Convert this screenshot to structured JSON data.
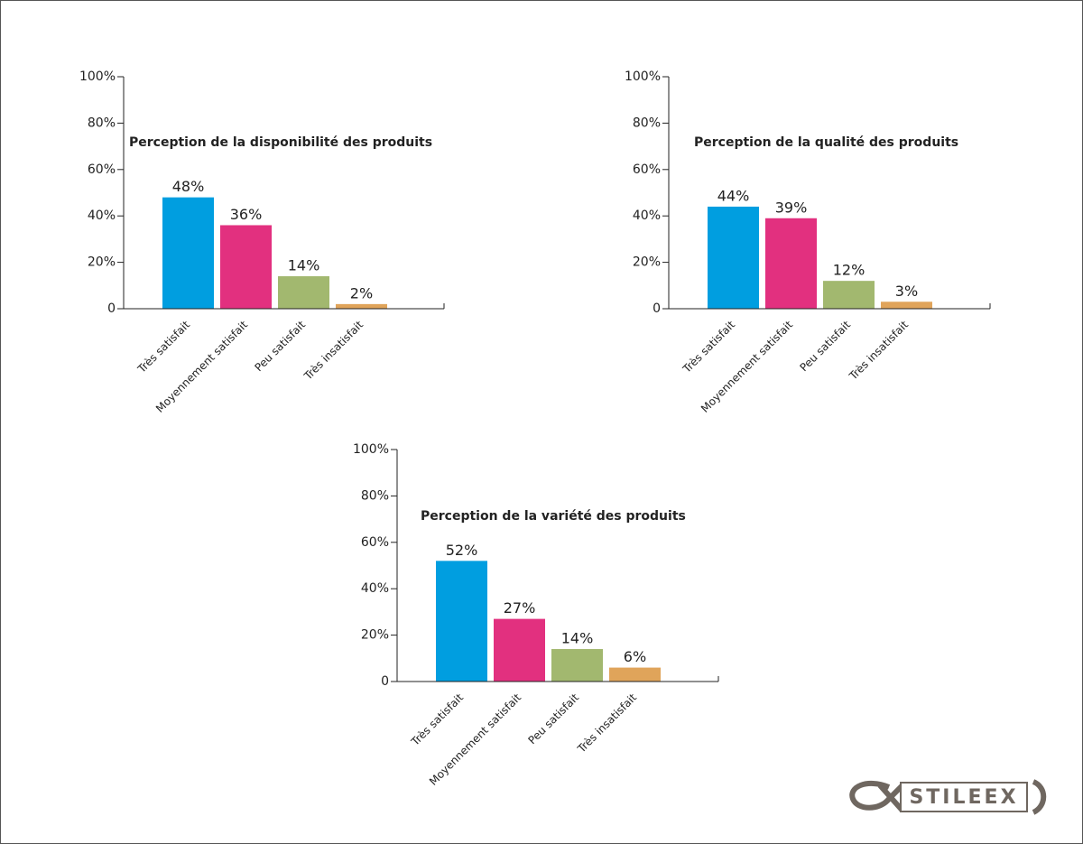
{
  "chart_data": [
    {
      "type": "bar",
      "title": "Perception de la disponibilité des produits",
      "categories": [
        "Très satisfait",
        "Moyennement satisfait",
        "Peu satisfait",
        "Très insatisfait"
      ],
      "values": [
        48,
        36,
        14,
        2
      ],
      "value_labels": [
        "48%",
        "36%",
        "14%",
        "2%"
      ],
      "colors": [
        "#009ee0",
        "#e2307f",
        "#a2b86f",
        "#e0a45a"
      ],
      "ylim": [
        0,
        100
      ],
      "yticks": [
        0,
        {
          "value": 20,
          "label": "20%"
        },
        {
          "value": 40,
          "label": "40%"
        },
        {
          "value": 60,
          "label": "60%"
        },
        {
          "value": 80,
          "label": "80%"
        },
        {
          "value": 100,
          "label": "100%"
        }
      ]
    },
    {
      "type": "bar",
      "title": "Perception de la qualité des produits",
      "categories": [
        "Très satisfait",
        "Moyennement satisfait",
        "Peu satisfait",
        "Très insatisfait"
      ],
      "values": [
        44,
        39,
        12,
        3
      ],
      "value_labels": [
        "44%",
        "39%",
        "12%",
        "3%"
      ],
      "colors": [
        "#009ee0",
        "#e2307f",
        "#a2b86f",
        "#e0a45a"
      ],
      "ylim": [
        0,
        100
      ],
      "yticks": [
        0,
        {
          "value": 20,
          "label": "20%"
        },
        {
          "value": 40,
          "label": "40%"
        },
        {
          "value": 60,
          "label": "60%"
        },
        {
          "value": 80,
          "label": "80%"
        },
        {
          "value": 100,
          "label": "100%"
        }
      ]
    },
    {
      "type": "bar",
      "title": "Perception de la variété des produits",
      "categories": [
        "Très satisfait",
        "Moyennement satisfait",
        "Peu satisfait",
        "Très insatisfait"
      ],
      "values": [
        52,
        27,
        14,
        6
      ],
      "value_labels": [
        "52%",
        "27%",
        "14%",
        "6%"
      ],
      "colors": [
        "#009ee0",
        "#e2307f",
        "#a2b86f",
        "#e0a45a"
      ],
      "ylim": [
        0,
        100
      ],
      "yticks": [
        0,
        {
          "value": 20,
          "label": "20%"
        },
        {
          "value": 40,
          "label": "40%"
        },
        {
          "value": 60,
          "label": "60%"
        },
        {
          "value": 80,
          "label": "80%"
        },
        {
          "value": 100,
          "label": "100%"
        }
      ]
    }
  ],
  "logo": "STILEEX"
}
